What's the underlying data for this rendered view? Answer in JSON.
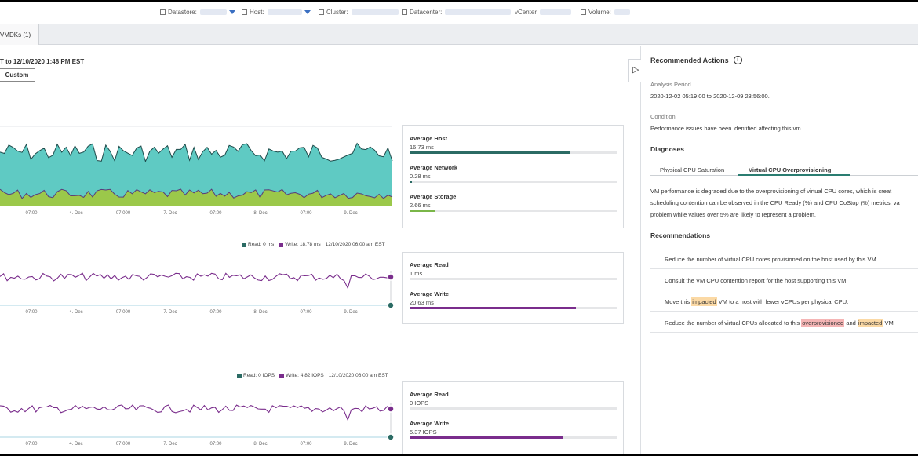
{
  "filters": {
    "datastore": "Datastore:",
    "host": "Host:",
    "cluster": "Cluster:",
    "datacenter": "Datacenter:",
    "vcenter": "vCenter",
    "volume": "Volume:"
  },
  "tabs": {
    "vmdks": "VMDKs (1)"
  },
  "range": {
    "text": "T to 12/10/2020 1:48 PM EST",
    "custom_label": "Custom"
  },
  "charts": {
    "x_ticks": [
      "07:00",
      "4. Dec",
      "07:000",
      "7. Dec",
      "07:00",
      "8. Dec",
      "07:00",
      "9. Dec"
    ],
    "latency": {
      "legend": {
        "read": "Read: 0 ms",
        "write": "Write: 18.78 ms",
        "time": "12/10/2020 06:00 am EST"
      }
    },
    "iops": {
      "legend": {
        "read": "Read: 0 IOPS",
        "write": "Write: 4.82 IOPS",
        "time": "12/10/2020 06:00 am EST"
      }
    }
  },
  "stats": {
    "host": {
      "label": "Average Host",
      "value": "16.73 ms",
      "fraction": 0.77,
      "color": "#2b6b64"
    },
    "network": {
      "label": "Average Network",
      "value": "0.28 ms",
      "fraction": 0.01,
      "color": "#2b6b64"
    },
    "storage": {
      "label": "Average Storage",
      "value": "2.66 ms",
      "fraction": 0.12,
      "color": "#7ab648"
    },
    "lat_read": {
      "label": "Average Read",
      "value": "1 ms",
      "fraction": 0.0,
      "color": "#7a2d8c"
    },
    "lat_write": {
      "label": "Average Write",
      "value": "20.63 ms",
      "fraction": 0.8,
      "color": "#7a2d8c"
    },
    "iops_read": {
      "label": "Average Read",
      "value": "0 IOPS",
      "fraction": 0.0,
      "color": "#7a2d8c"
    },
    "iops_write": {
      "label": "Average Write",
      "value": "5.37 IOPS",
      "fraction": 0.74,
      "color": "#7a2d8c"
    }
  },
  "panel": {
    "title": "Recommended Actions",
    "analysis_label": "Analysis Period",
    "analysis_value": "2020-12-02 05:19:00 to 2020-12-09 23:56:00.",
    "condition_label": "Condition",
    "condition_value": "Performance issues have been identified affecting this vm.",
    "diagnoses_heading": "Diagnoses",
    "subtabs": [
      "Physical CPU Saturation",
      "Virtual CPU Overprovisioning"
    ],
    "diag_lines": [
      "VM performance is degraded due to the overprovisioning of virtual CPU cores, which is creat",
      "scheduling contention can be observed in the CPU Ready (%) and CPU CoStop (%) metrics; va",
      "problem while values over 5% are likely to represent a problem."
    ],
    "recommendations_heading": "Recommendations",
    "recs": {
      "r1": "Reduce the number of virtual CPU cores provisioned on the host used by this VM.",
      "r2": "Consult the VM CPU contention report for the host supporting this VM.",
      "r3_pre": "Move this",
      "r3_hl": "impacted",
      "r3_post": "VM to a host with fewer vCPUs per physical CPU.",
      "r4_pre": "Reduce the number of virtual CPUs allocated to this",
      "r4_hl1": "overprovisioned",
      "r4_mid": "and",
      "r4_hl2": "impacted",
      "r4_post": "VM"
    }
  },
  "colors": {
    "teal_area": "#5fcac3",
    "green_area": "#9bc84a",
    "dark_line": "#1e4a4a",
    "purple": "#7a2d8c",
    "light_blue": "#a9d4e3"
  }
}
